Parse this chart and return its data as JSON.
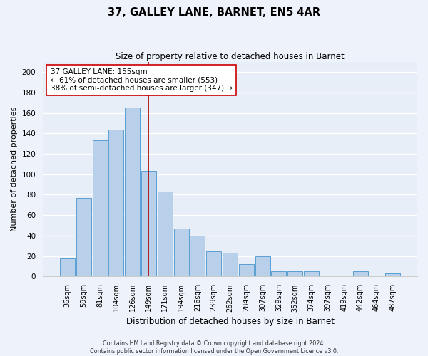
{
  "title": "37, GALLEY LANE, BARNET, EN5 4AR",
  "subtitle": "Size of property relative to detached houses in Barnet",
  "xlabel": "Distribution of detached houses by size in Barnet",
  "ylabel": "Number of detached properties",
  "bar_labels": [
    "36sqm",
    "59sqm",
    "81sqm",
    "104sqm",
    "126sqm",
    "149sqm",
    "171sqm",
    "194sqm",
    "216sqm",
    "239sqm",
    "262sqm",
    "284sqm",
    "307sqm",
    "329sqm",
    "352sqm",
    "374sqm",
    "397sqm",
    "419sqm",
    "442sqm",
    "464sqm",
    "487sqm"
  ],
  "bar_heights": [
    18,
    77,
    133,
    144,
    165,
    103,
    83,
    47,
    40,
    25,
    23,
    12,
    20,
    5,
    5,
    5,
    1,
    0,
    5,
    0,
    3
  ],
  "bar_color": "#b8d0ea",
  "bar_edge_color": "#5a9fd4",
  "fig_bg_color": "#eef2fa",
  "ax_bg_color": "#e8eef8",
  "vline_x": 5,
  "vline_color": "#aa0000",
  "annotation_title": "37 GALLEY LANE: 155sqm",
  "annotation_line1": "← 61% of detached houses are smaller (553)",
  "annotation_line2": "38% of semi-detached houses are larger (347) →",
  "ylim": [
    0,
    210
  ],
  "yticks": [
    0,
    20,
    40,
    60,
    80,
    100,
    120,
    140,
    160,
    180,
    200
  ],
  "footer_line1": "Contains HM Land Registry data © Crown copyright and database right 2024.",
  "footer_line2": "Contains public sector information licensed under the Open Government Licence v3.0."
}
